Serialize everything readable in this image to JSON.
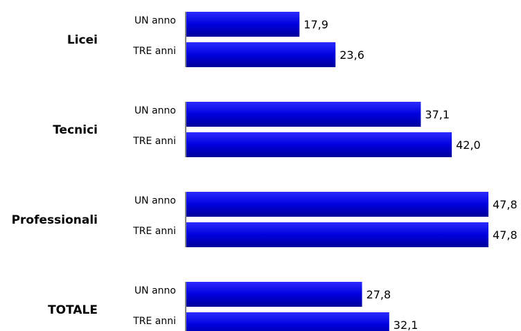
{
  "chart_data": {
    "type": "bar",
    "orientation": "horizontal",
    "groups": [
      {
        "name": "Licei",
        "bars": [
          {
            "label": "UN anno",
            "value": 17.9,
            "value_label": "17,9"
          },
          {
            "label": "TRE anni",
            "value": 23.6,
            "value_label": "23,6"
          }
        ]
      },
      {
        "name": "Tecnici",
        "bars": [
          {
            "label": "UN anno",
            "value": 37.1,
            "value_label": "37,1"
          },
          {
            "label": "TRE anni",
            "value": 42.0,
            "value_label": "42,0"
          }
        ]
      },
      {
        "name": "Professionali",
        "bars": [
          {
            "label": "UN anno",
            "value": 47.8,
            "value_label": "47,8"
          },
          {
            "label": "TRE anni",
            "value": 47.8,
            "value_label": "47,8"
          }
        ]
      },
      {
        "name": "TOTALE",
        "bars": [
          {
            "label": "UN anno",
            "value": 27.8,
            "value_label": "27,8"
          },
          {
            "label": "TRE anni",
            "value": 32.1,
            "value_label": "32,1"
          }
        ]
      }
    ],
    "xlim": [
      0,
      47.8
    ],
    "grid": false,
    "legend": "none",
    "colors": {
      "bar_top": "#2b2bff",
      "bar_bottom": "#00009a",
      "bar_fill": "#0000dd"
    }
  }
}
